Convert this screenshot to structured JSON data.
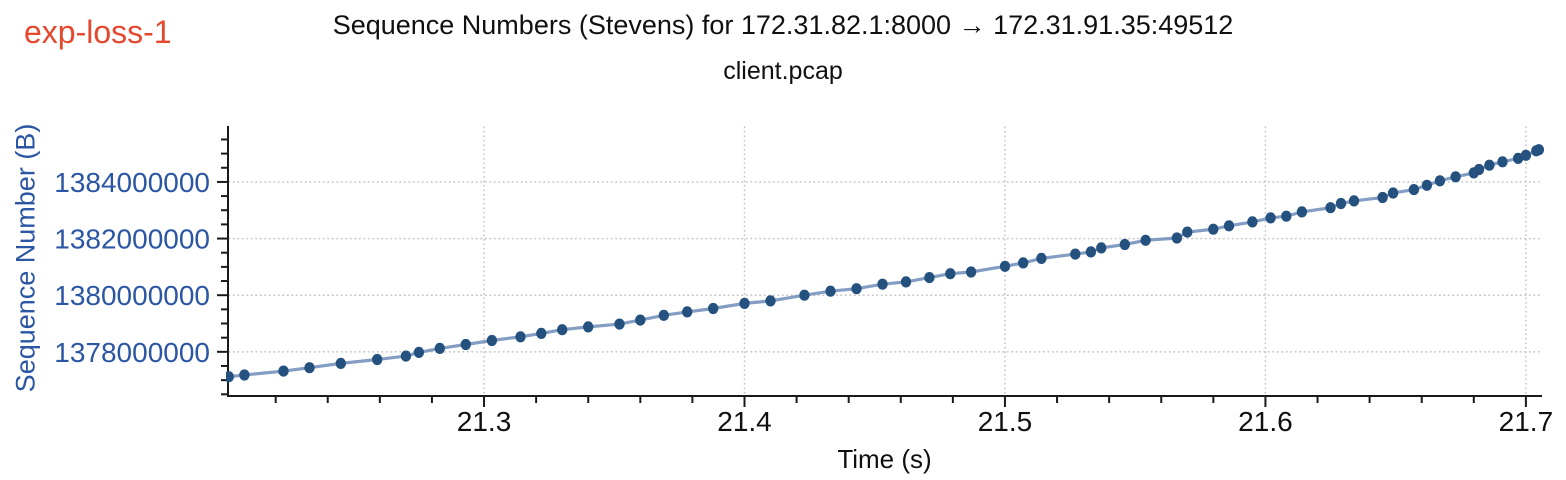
{
  "experiment_label": "exp-loss-1",
  "title": "Sequence Numbers (Stevens) for 172.31.82.1:8000 → 172.31.91.35:49512",
  "subtitle": "client.pcap",
  "chart_data": {
    "type": "scatter",
    "title": "Sequence Numbers (Stevens) for 172.31.82.1:8000 → 172.31.91.35:49512",
    "subtitle": "client.pcap",
    "xlabel": "Time (s)",
    "ylabel": "Sequence Number (B)",
    "xlim": [
      21.2017,
      21.7058
    ],
    "ylim": [
      1376440000,
      1385940000
    ],
    "x_major_ticks": [
      21.3,
      21.4,
      21.5,
      21.6,
      21.7
    ],
    "x_major_tick_labels": [
      "21.3",
      "21.4",
      "21.5",
      "21.6",
      "21.7"
    ],
    "x_minor_step": 0.02,
    "y_major_ticks": [
      1378000000,
      1380000000,
      1382000000,
      1384000000
    ],
    "y_major_tick_labels": [
      "1378000000",
      "1380000000",
      "1382000000",
      "1384000000"
    ],
    "y_minor_step": 500000,
    "grid": true,
    "legend": false,
    "series": [
      {
        "name": "sequence-numbers",
        "points": [
          [
            21.202,
            1377120000
          ],
          [
            21.208,
            1377180000
          ],
          [
            21.223,
            1377320000
          ],
          [
            21.233,
            1377440000
          ],
          [
            21.245,
            1377590000
          ],
          [
            21.259,
            1377730000
          ],
          [
            21.27,
            1377850000
          ],
          [
            21.275,
            1377980000
          ],
          [
            21.283,
            1378120000
          ],
          [
            21.293,
            1378260000
          ],
          [
            21.303,
            1378400000
          ],
          [
            21.314,
            1378530000
          ],
          [
            21.322,
            1378650000
          ],
          [
            21.33,
            1378780000
          ],
          [
            21.34,
            1378880000
          ],
          [
            21.352,
            1378980000
          ],
          [
            21.36,
            1379120000
          ],
          [
            21.369,
            1379290000
          ],
          [
            21.378,
            1379410000
          ],
          [
            21.388,
            1379530000
          ],
          [
            21.4,
            1379710000
          ],
          [
            21.41,
            1379800000
          ],
          [
            21.423,
            1380000000
          ],
          [
            21.433,
            1380140000
          ],
          [
            21.443,
            1380230000
          ],
          [
            21.453,
            1380390000
          ],
          [
            21.462,
            1380470000
          ],
          [
            21.471,
            1380620000
          ],
          [
            21.479,
            1380760000
          ],
          [
            21.487,
            1380820000
          ],
          [
            21.5,
            1381020000
          ],
          [
            21.507,
            1381140000
          ],
          [
            21.514,
            1381300000
          ],
          [
            21.527,
            1381450000
          ],
          [
            21.533,
            1381530000
          ],
          [
            21.537,
            1381670000
          ],
          [
            21.546,
            1381790000
          ],
          [
            21.554,
            1381940000
          ],
          [
            21.566,
            1382020000
          ],
          [
            21.57,
            1382230000
          ],
          [
            21.58,
            1382330000
          ],
          [
            21.586,
            1382450000
          ],
          [
            21.595,
            1382590000
          ],
          [
            21.602,
            1382730000
          ],
          [
            21.608,
            1382790000
          ],
          [
            21.614,
            1382940000
          ],
          [
            21.625,
            1383090000
          ],
          [
            21.629,
            1383240000
          ],
          [
            21.634,
            1383330000
          ],
          [
            21.645,
            1383450000
          ],
          [
            21.649,
            1383610000
          ],
          [
            21.657,
            1383730000
          ],
          [
            21.662,
            1383880000
          ],
          [
            21.667,
            1384040000
          ],
          [
            21.673,
            1384180000
          ],
          [
            21.68,
            1384320000
          ],
          [
            21.682,
            1384440000
          ],
          [
            21.686,
            1384590000
          ],
          [
            21.691,
            1384710000
          ],
          [
            21.697,
            1384830000
          ],
          [
            21.7,
            1384940000
          ],
          [
            21.704,
            1385100000
          ],
          [
            21.705,
            1385140000
          ]
        ]
      }
    ]
  },
  "style": {
    "accent_red": "#e5482d",
    "axis_blue": "#2b56a3",
    "dot_color": "#24517e",
    "line_color": "#6e8db9",
    "grid_color": "#c6c6c6",
    "axis_color": "#1a1a1a",
    "text_color": "#101010"
  }
}
